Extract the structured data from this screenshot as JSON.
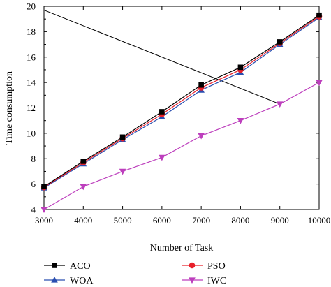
{
  "chart_data": {
    "type": "line",
    "xlabel": "Number of Task",
    "ylabel": "Time consumption",
    "xlim": [
      3000,
      10000
    ],
    "ylim": [
      4,
      20
    ],
    "x_ticks": [
      "3000",
      "4000",
      "5000",
      "6000",
      "7000",
      "8000",
      "9000",
      "10000"
    ],
    "y_ticks": [
      "4",
      "6",
      "8",
      "10",
      "12",
      "14",
      "16",
      "18",
      "20"
    ],
    "x": [
      3000,
      4000,
      5000,
      6000,
      7000,
      8000,
      9000,
      10000
    ],
    "series": [
      {
        "name": "ACO",
        "color": "#000000",
        "marker": "square",
        "values": [
          5.8,
          7.8,
          9.7,
          11.7,
          13.8,
          15.2,
          17.2,
          19.3
        ]
      },
      {
        "name": "PSO",
        "color": "#e8202a",
        "marker": "circle",
        "values": [
          5.75,
          7.7,
          9.6,
          11.5,
          13.6,
          15.0,
          17.1,
          19.2
        ]
      },
      {
        "name": "WOA",
        "color": "#2a4fb0",
        "marker": "triangle-up",
        "values": [
          5.7,
          7.6,
          9.5,
          11.3,
          13.4,
          14.8,
          17.0,
          19.1
        ]
      },
      {
        "name": "IWC",
        "color": "#bd3fbd",
        "marker": "triangle-down",
        "values": [
          4.0,
          5.8,
          7.0,
          8.1,
          9.8,
          11.0,
          12.3,
          14.0
        ]
      }
    ],
    "extra_line": {
      "color": "#000000",
      "x": [
        3000,
        9000
      ],
      "y": [
        19.7,
        12.3
      ]
    },
    "legend": {
      "position": "bottom",
      "columns": 2,
      "order": [
        "ACO",
        "PSO",
        "WOA",
        "IWC"
      ]
    }
  }
}
